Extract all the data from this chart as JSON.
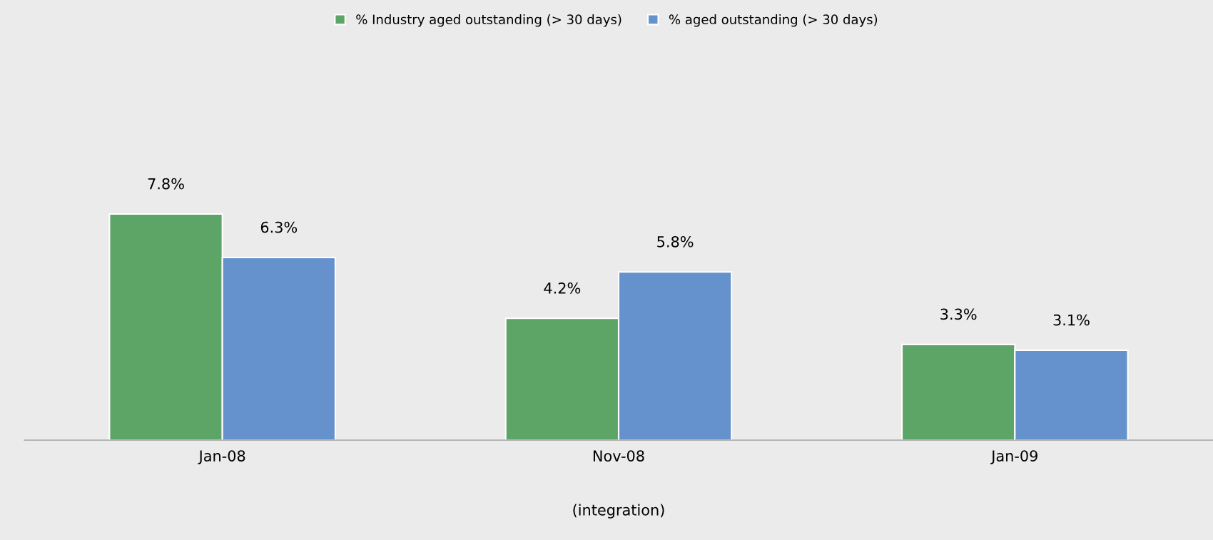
{
  "chart_data": {
    "type": "bar",
    "categories": [
      "Jan-08",
      "Nov-08",
      "Jan-09"
    ],
    "xlabel": "(integration)",
    "series": [
      {
        "name": "% Industry aged outstanding (> 30 days)",
        "color": "#5da566",
        "values": [
          7.8,
          4.2,
          3.3
        ],
        "value_labels": [
          "7.8%",
          "4.2%",
          "3.3%"
        ]
      },
      {
        "name": "% aged outstanding (> 30 days)",
        "color": "#6592cc",
        "values": [
          6.3,
          5.8,
          3.1
        ],
        "value_labels": [
          "6.3%",
          "5.8%",
          "3.1%"
        ]
      }
    ],
    "legend": "top",
    "grid": false
  }
}
